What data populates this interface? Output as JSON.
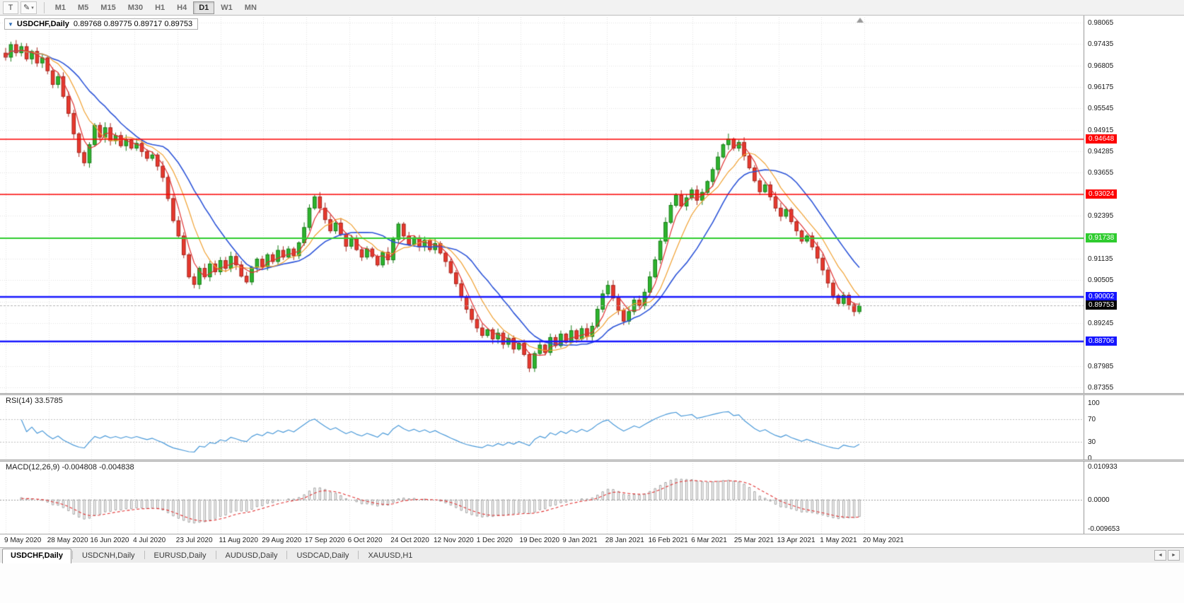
{
  "toolbar": {
    "tool_buttons": [
      {
        "name": "text-tool",
        "glyph": "T"
      },
      {
        "name": "line-tools",
        "glyph": "✎",
        "caret": "▾"
      }
    ],
    "timeframes": [
      "M1",
      "M5",
      "M15",
      "M30",
      "H1",
      "H4",
      "D1",
      "W1",
      "MN"
    ],
    "active_timeframe": "D1"
  },
  "chart": {
    "title": "USDCHF,Daily",
    "ohlc": "0.89768 0.89775 0.89717 0.89753",
    "expand_glyph": "▼"
  },
  "price_axis": {
    "ticks": [
      "0.98065",
      "0.97435",
      "0.96805",
      "0.96175",
      "0.95545",
      "0.94915",
      "0.94285",
      "0.93655",
      "0.92395",
      "0.91135",
      "0.90505",
      "0.89245",
      "0.87985",
      "0.87355"
    ],
    "line_labels": [
      {
        "name": "resistance-1",
        "text": "0.94648",
        "bg": "#fd0000"
      },
      {
        "name": "resistance-2",
        "text": "0.93024",
        "bg": "#fd0000"
      },
      {
        "name": "pivot-line",
        "text": "0.91738",
        "bg": "#2fcc2f"
      },
      {
        "name": "support-1",
        "text": "0.90002",
        "bg": "#1515ff"
      },
      {
        "name": "current-price",
        "text": "0.89753",
        "bg": "#000000"
      },
      {
        "name": "support-2",
        "text": "0.88706",
        "bg": "#1515ff"
      }
    ]
  },
  "indicators": {
    "rsi": {
      "label": "RSI(14) 33.5785",
      "current": 33.5785,
      "axis": [
        "100",
        "70",
        "30",
        "0"
      ],
      "axis_values": [
        100,
        70,
        30,
        0
      ],
      "levels": [
        70,
        30
      ]
    },
    "macd": {
      "label": "MACD(12,26,9) -0.004808 -0.004838",
      "values_text": [
        "-0.004808",
        "-0.004838"
      ],
      "axis": [
        "0.010933",
        "0.0000",
        "-0.009653"
      ],
      "axis_values": [
        0.010933,
        0,
        -0.009653
      ]
    }
  },
  "time_axis": {
    "labels": [
      "9 May 2020",
      "28 May 2020",
      "16 Jun 2020",
      "4 Jul 2020",
      "23 Jul 2020",
      "11 Aug 2020",
      "29 Aug 2020",
      "17 Sep 2020",
      "6 Oct 2020",
      "24 Oct 2020",
      "12 Nov 2020",
      "1 Dec 2020",
      "19 Dec 2020",
      "9 Jan 2021",
      "28 Jan 2021",
      "16 Feb 2021",
      "6 Mar 2021",
      "25 Mar 2021",
      "13 Apr 2021",
      "1 May 2021",
      "20 May 2021"
    ]
  },
  "tabs": {
    "items": [
      {
        "label": "USDCHF,Daily",
        "active": true
      },
      {
        "label": "USDCNH,Daily",
        "active": false
      },
      {
        "label": "EURUSD,Daily",
        "active": false
      },
      {
        "label": "AUDUSD,Daily",
        "active": false
      },
      {
        "label": "USDCAD,Daily",
        "active": false
      },
      {
        "label": "XAUUSD,H1",
        "active": false
      }
    ],
    "scroll_left_glyph": "◄",
    "scroll_right_glyph": "►"
  },
  "chart_data": {
    "type": "candlestick",
    "symbol": "USDCHF",
    "timeframe": "Daily",
    "title": "USDCHF,Daily",
    "y_range": [
      0.87355,
      0.98065
    ],
    "grid_step": 0.0063,
    "last_ohlc": {
      "open": 0.89768,
      "high": 0.89775,
      "low": 0.89717,
      "close": 0.89753
    },
    "closes": [
      0.9705,
      0.9742,
      0.9718,
      0.9736,
      0.97,
      0.9722,
      0.9688,
      0.9703,
      0.9665,
      0.9625,
      0.9648,
      0.959,
      0.954,
      0.948,
      0.9425,
      0.9395,
      0.9448,
      0.9505,
      0.947,
      0.9498,
      0.946,
      0.9475,
      0.9445,
      0.9462,
      0.9438,
      0.9452,
      0.9428,
      0.9408,
      0.9418,
      0.9385,
      0.9352,
      0.929,
      0.9225,
      0.918,
      0.9125,
      0.906,
      0.9038,
      0.9085,
      0.906,
      0.9098,
      0.9075,
      0.9108,
      0.9085,
      0.912,
      0.9095,
      0.9062,
      0.9045,
      0.9088,
      0.9112,
      0.909,
      0.9125,
      0.9105,
      0.9138,
      0.9118,
      0.9142,
      0.9122,
      0.916,
      0.9205,
      0.9262,
      0.9295,
      0.9262,
      0.9228,
      0.9195,
      0.9218,
      0.9185,
      0.915,
      0.9172,
      0.914,
      0.9118,
      0.9142,
      0.912,
      0.9095,
      0.9132,
      0.911,
      0.917,
      0.9215,
      0.918,
      0.9155,
      0.9175,
      0.9148,
      0.9168,
      0.914,
      0.9158,
      0.913,
      0.9105,
      0.9072,
      0.904,
      0.9,
      0.8965,
      0.8935,
      0.891,
      0.8888,
      0.8905,
      0.8878,
      0.8895,
      0.8862,
      0.888,
      0.8848,
      0.8865,
      0.8832,
      0.8792,
      0.8835,
      0.886,
      0.8838,
      0.8882,
      0.8858,
      0.8892,
      0.8868,
      0.8902,
      0.8878,
      0.8908,
      0.8885,
      0.8915,
      0.8965,
      0.901,
      0.9035,
      0.8998,
      0.8962,
      0.893,
      0.8958,
      0.8992,
      0.8975,
      0.9015,
      0.906,
      0.911,
      0.9165,
      0.922,
      0.927,
      0.93,
      0.9268,
      0.9292,
      0.9315,
      0.9285,
      0.9308,
      0.934,
      0.9375,
      0.9412,
      0.9448,
      0.9465,
      0.9438,
      0.9455,
      0.9415,
      0.938,
      0.9342,
      0.931,
      0.933,
      0.9295,
      0.9262,
      0.9238,
      0.9258,
      0.9222,
      0.9195,
      0.9165,
      0.918,
      0.9148,
      0.9115,
      0.908,
      0.9042,
      0.9005,
      0.8982,
      0.9006,
      0.8978,
      0.8958,
      0.89753
    ],
    "horizontal_lines": [
      {
        "price": 0.94648,
        "color": "#fd0000",
        "width": 1.5
      },
      {
        "price": 0.93024,
        "color": "#fd0000",
        "width": 1.5
      },
      {
        "price": 0.91738,
        "color": "#2fcc2f",
        "width": 2
      },
      {
        "price": 0.90002,
        "color": "#1515ff",
        "width": 2.5
      },
      {
        "price": 0.88706,
        "color": "#1515ff",
        "width": 2.5
      }
    ],
    "candle_colors": {
      "bull_fill": "#2eb52e",
      "bull_stroke": "#157a15",
      "bear_fill": "#e8392e",
      "bear_stroke": "#a3241c"
    },
    "moving_averages": [
      {
        "period": 15,
        "color": "#2c54d8",
        "width": 1.6
      },
      {
        "period": 8,
        "color": "#f0a030",
        "width": 1.2
      },
      {
        "period": 4,
        "color": "#e03131",
        "width": 1.2
      }
    ],
    "rsi_color": "#4898d8",
    "macd_histogram_color": "#a0a0a0",
    "macd_signal_color": "#e03131"
  }
}
